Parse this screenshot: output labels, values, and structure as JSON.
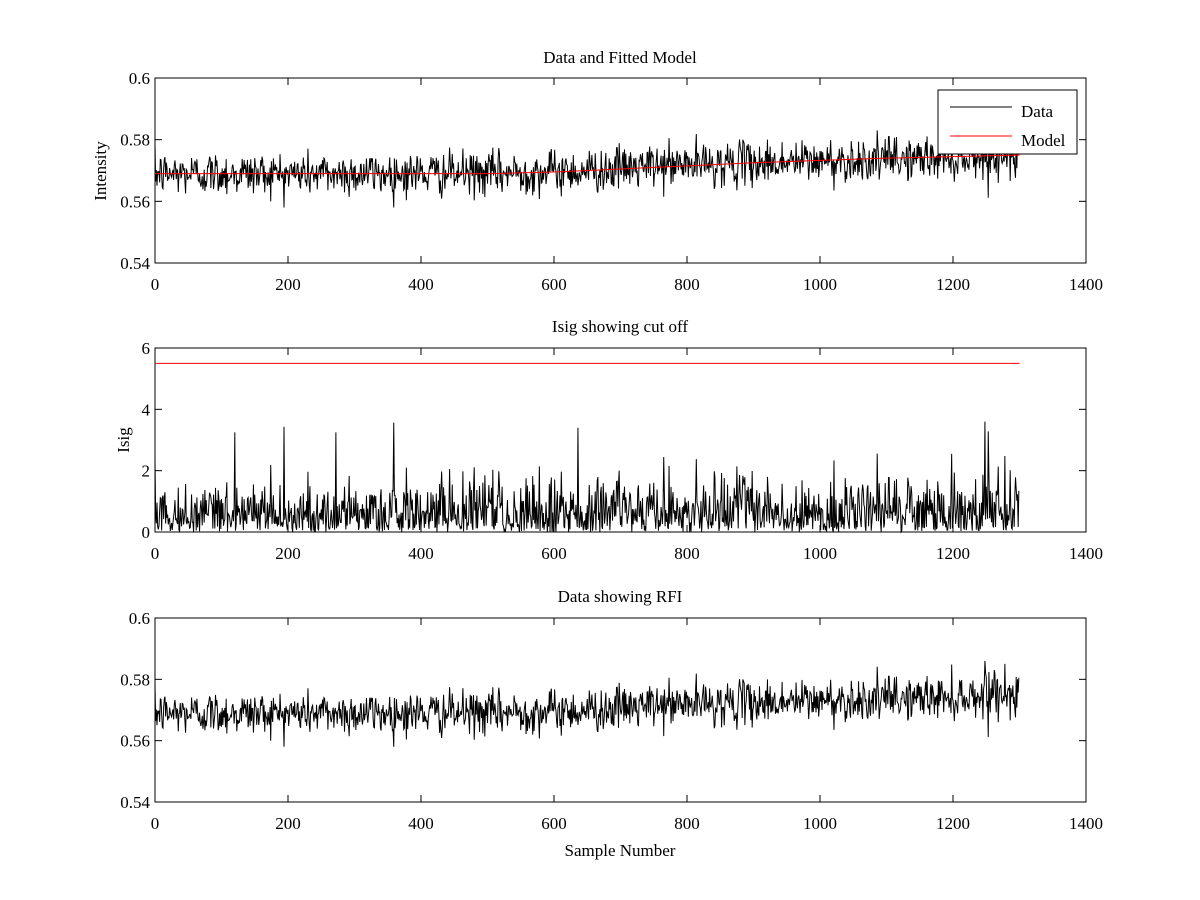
{
  "chart_data": [
    {
      "type": "line",
      "title": "Data and Fitted Model",
      "xlabel": "",
      "ylabel": "Intensity",
      "xlim": [
        0,
        1400
      ],
      "ylim": [
        0.54,
        0.6
      ],
      "xticks": [
        "0",
        "200",
        "400",
        "600",
        "800",
        "1000",
        "1200",
        "1400"
      ],
      "yticks": [
        "0.54",
        "0.56",
        "0.58",
        "0.6"
      ],
      "legend": {
        "placement": "top-right",
        "entries": [
          "Data",
          "Model"
        ]
      },
      "series": [
        {
          "name": "Data",
          "color": "#000000",
          "kind": "noisy",
          "n_points": 1300,
          "trend": {
            "x": [
              0,
              300,
              500,
              650,
              800,
              1000,
              1300
            ],
            "y": [
              0.569,
              0.569,
              0.569,
              0.57,
              0.572,
              0.573,
              0.575
            ]
          },
          "noise_sd": 0.0035,
          "min": 0.558,
          "max": 0.583
        },
        {
          "name": "Model",
          "color": "#ff0000",
          "x": [
            0,
            100,
            200,
            300,
            400,
            500,
            600,
            700,
            800,
            900,
            1000,
            1100,
            1200,
            1300
          ],
          "y": [
            0.569,
            0.569,
            0.569,
            0.569,
            0.569,
            0.569,
            0.5695,
            0.5705,
            0.5715,
            0.5725,
            0.5733,
            0.574,
            0.5745,
            0.575
          ]
        }
      ]
    },
    {
      "type": "line",
      "title": "Isig showing cut off",
      "xlabel": "",
      "ylabel": "Isig",
      "xlim": [
        0,
        1400
      ],
      "ylim": [
        0,
        6
      ],
      "xticks": [
        "0",
        "200",
        "400",
        "600",
        "800",
        "1000",
        "1200",
        "1400"
      ],
      "yticks": [
        "0",
        "2",
        "4",
        "6"
      ],
      "series": [
        {
          "color": "#000000",
          "kind": "noisy",
          "n_points": 1300,
          "min": 0,
          "max": 3.6
        },
        {
          "color": "#ff0000",
          "x": [
            0,
            1300
          ],
          "y": [
            5.5,
            5.5
          ]
        }
      ]
    },
    {
      "type": "line",
      "title": "Data showing RFI",
      "xlabel": "Sample Number",
      "ylabel": "",
      "xlim": [
        0,
        1400
      ],
      "ylim": [
        0.54,
        0.6
      ],
      "xticks": [
        "0",
        "200",
        "400",
        "600",
        "800",
        "1000",
        "1200",
        "1400"
      ],
      "yticks": [
        "0.54",
        "0.56",
        "0.58",
        "0.6"
      ],
      "series": [
        {
          "color": "#000000",
          "kind": "noisy",
          "n_points": 1300,
          "trend": {
            "x": [
              0,
              300,
              500,
              650,
              800,
              1000,
              1300
            ],
            "y": [
              0.569,
              0.569,
              0.569,
              0.57,
              0.572,
              0.573,
              0.575
            ]
          },
          "noise_sd": 0.0035,
          "min": 0.558,
          "max": 0.586
        }
      ]
    }
  ]
}
